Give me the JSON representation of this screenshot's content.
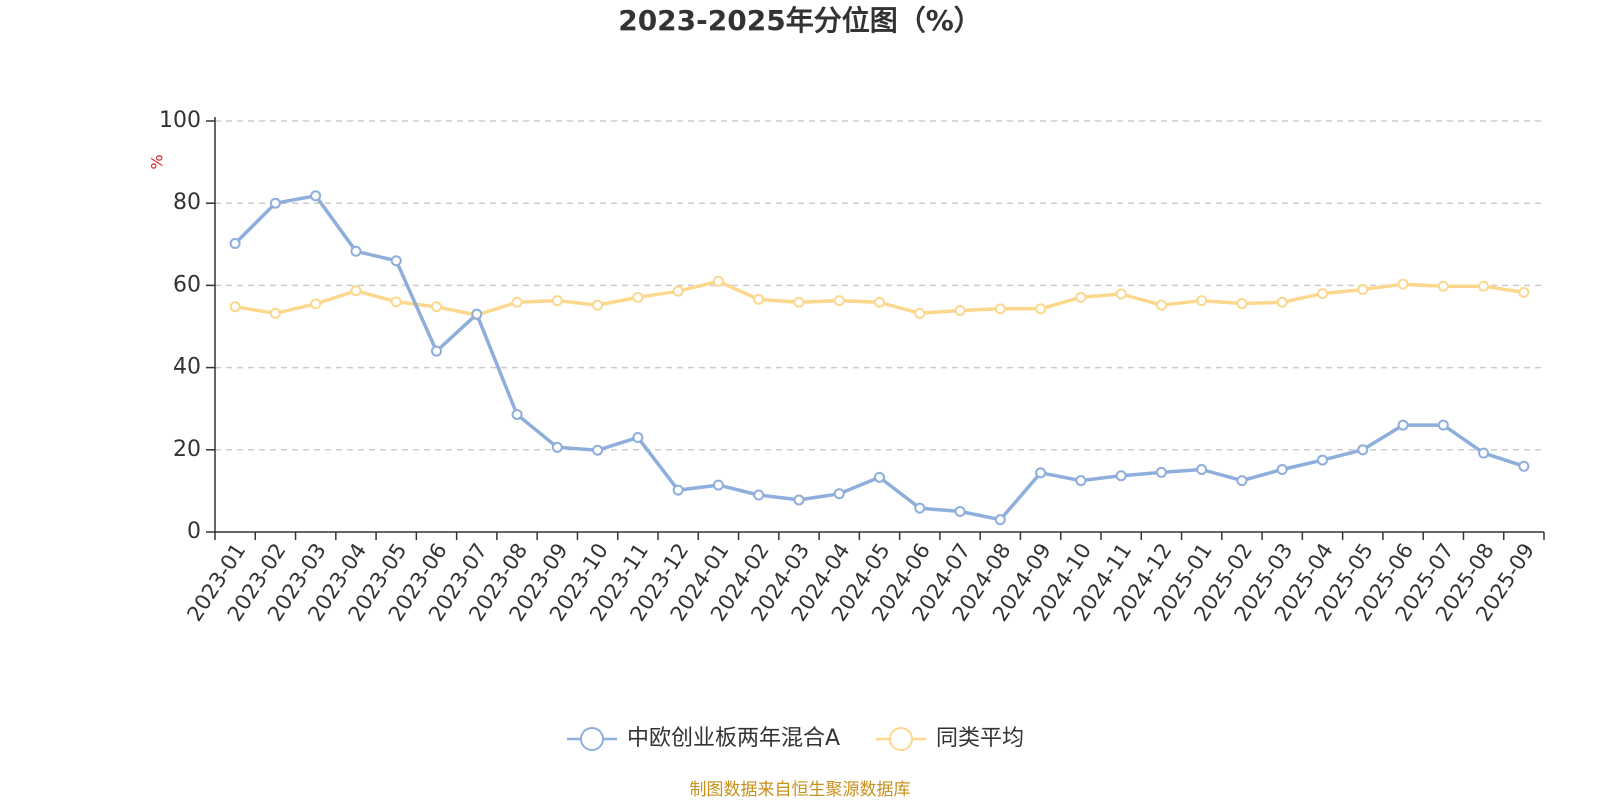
{
  "chart_data": {
    "type": "line",
    "title": "2023-2025年分位图（%）",
    "ylabel": "%",
    "ylim": [
      0,
      100
    ],
    "yticks": [
      0,
      20,
      40,
      60,
      80,
      100
    ],
    "grid": true,
    "legend_position": "bottom-center",
    "categories": [
      "2023-01",
      "2023-02",
      "2023-03",
      "2023-04",
      "2023-05",
      "2023-06",
      "2023-07",
      "2023-08",
      "2023-09",
      "2023-10",
      "2023-11",
      "2023-12",
      "2024-01",
      "2024-02",
      "2024-03",
      "2024-04",
      "2024-05",
      "2024-06",
      "2024-07",
      "2024-08",
      "2024-09",
      "2024-10",
      "2024-11",
      "2024-12",
      "2025-01",
      "2025-02",
      "2025-03",
      "2025-04",
      "2025-05",
      "2025-06",
      "2025-07",
      "2025-08",
      "2025-09"
    ],
    "series": [
      {
        "name": "中欧创业板两年混合A",
        "color": "#8eaedb",
        "values": [
          70.2,
          80.0,
          81.8,
          68.3,
          66.0,
          44.0,
          53.0,
          28.6,
          20.6,
          19.9,
          23.0,
          10.2,
          11.4,
          9.0,
          7.8,
          9.3,
          13.3,
          5.8,
          5.0,
          3.0,
          14.4,
          12.5,
          13.7,
          14.5,
          15.2,
          12.5,
          15.2,
          17.5,
          20.0,
          26.0,
          26.0,
          19.2,
          16.0
        ]
      },
      {
        "name": "同类平均",
        "color": "#fcd88f",
        "values": [
          54.8,
          53.2,
          55.5,
          58.7,
          56.0,
          54.8,
          52.8,
          55.9,
          56.3,
          55.2,
          57.1,
          58.6,
          61.0,
          56.6,
          55.9,
          56.3,
          55.9,
          53.2,
          53.9,
          54.3,
          54.3,
          57.1,
          57.9,
          55.2,
          56.3,
          55.6,
          55.9,
          58.0,
          59.0,
          60.3,
          59.8,
          59.8,
          58.3
        ]
      }
    ]
  },
  "footer": {
    "source": "制图数据来自恒生聚源数据库"
  },
  "colors": {
    "axis": "#333333",
    "grid": "#cccccc",
    "unit_label": "#e02020",
    "source_text": "#c9901a",
    "marker_fill": "#ffffff"
  }
}
